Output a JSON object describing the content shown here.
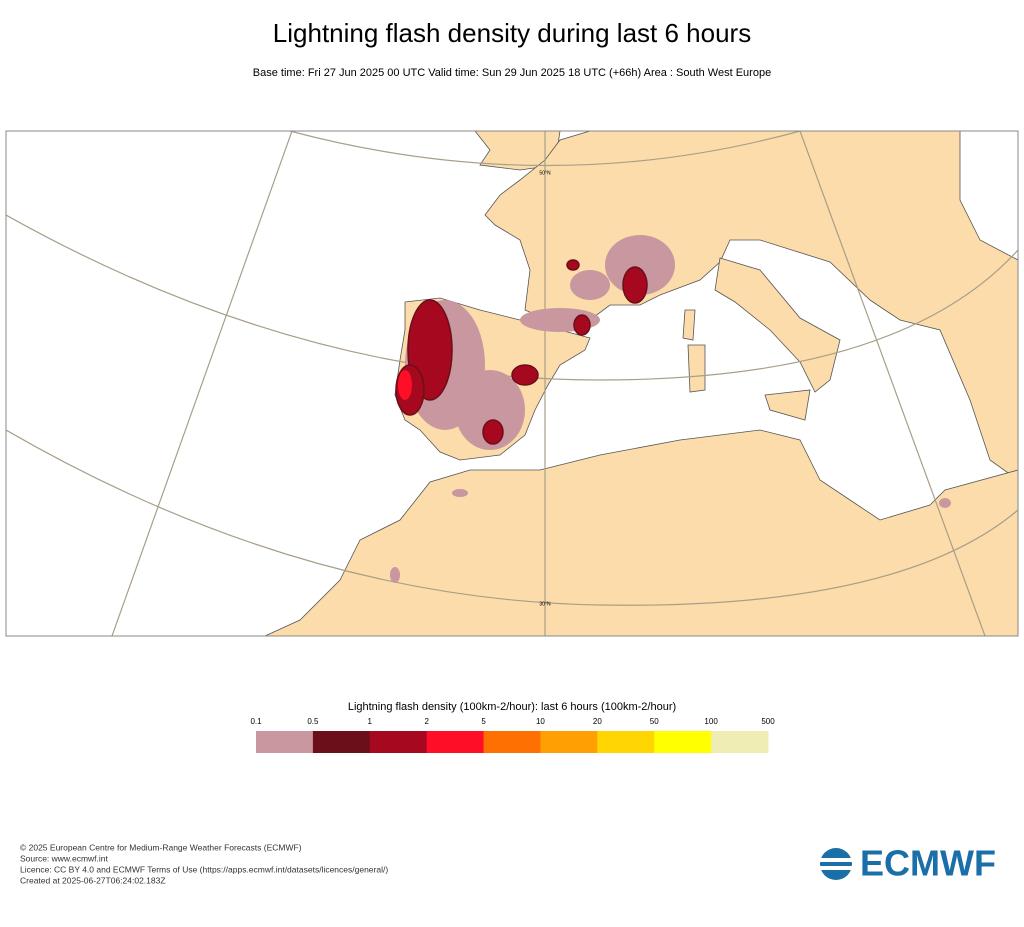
{
  "header": {
    "title": "Lightning flash density during last 6 hours",
    "subtitle": "Base time: Fri 27 Jun 2025 00 UTC Valid time: Sun 29 Jun 2025 18 UTC (+66h) Area : South West Europe"
  },
  "map": {
    "graticule_labels": [
      "50°N",
      "30°N"
    ]
  },
  "legend": {
    "title": "Lightning flash density (100km-2/hour): last 6 hours (100km-2/hour)",
    "labels": [
      "0.1",
      "0.5",
      "1",
      "2",
      "5",
      "10",
      "20",
      "50",
      "100",
      "500"
    ],
    "colors": [
      "#c8979f",
      "#6b0f1a",
      "#a5081f",
      "#fe0f27",
      "#ff7003",
      "#ff9f02",
      "#ffd602",
      "#ffff02",
      "#efecb4"
    ]
  },
  "footer": {
    "lines": [
      "© 2025 European Centre for Medium-Range Weather Forecasts (ECMWF)",
      "Source: www.ecmwf.int",
      "Licence: CC BY 4.0 and ECMWF Terms of Use (https://apps.ecmwf.int/datasets/licences/general/)",
      "Created at 2025-06-27T06:24:02.183Z"
    ],
    "logo": "ECMWF"
  }
}
